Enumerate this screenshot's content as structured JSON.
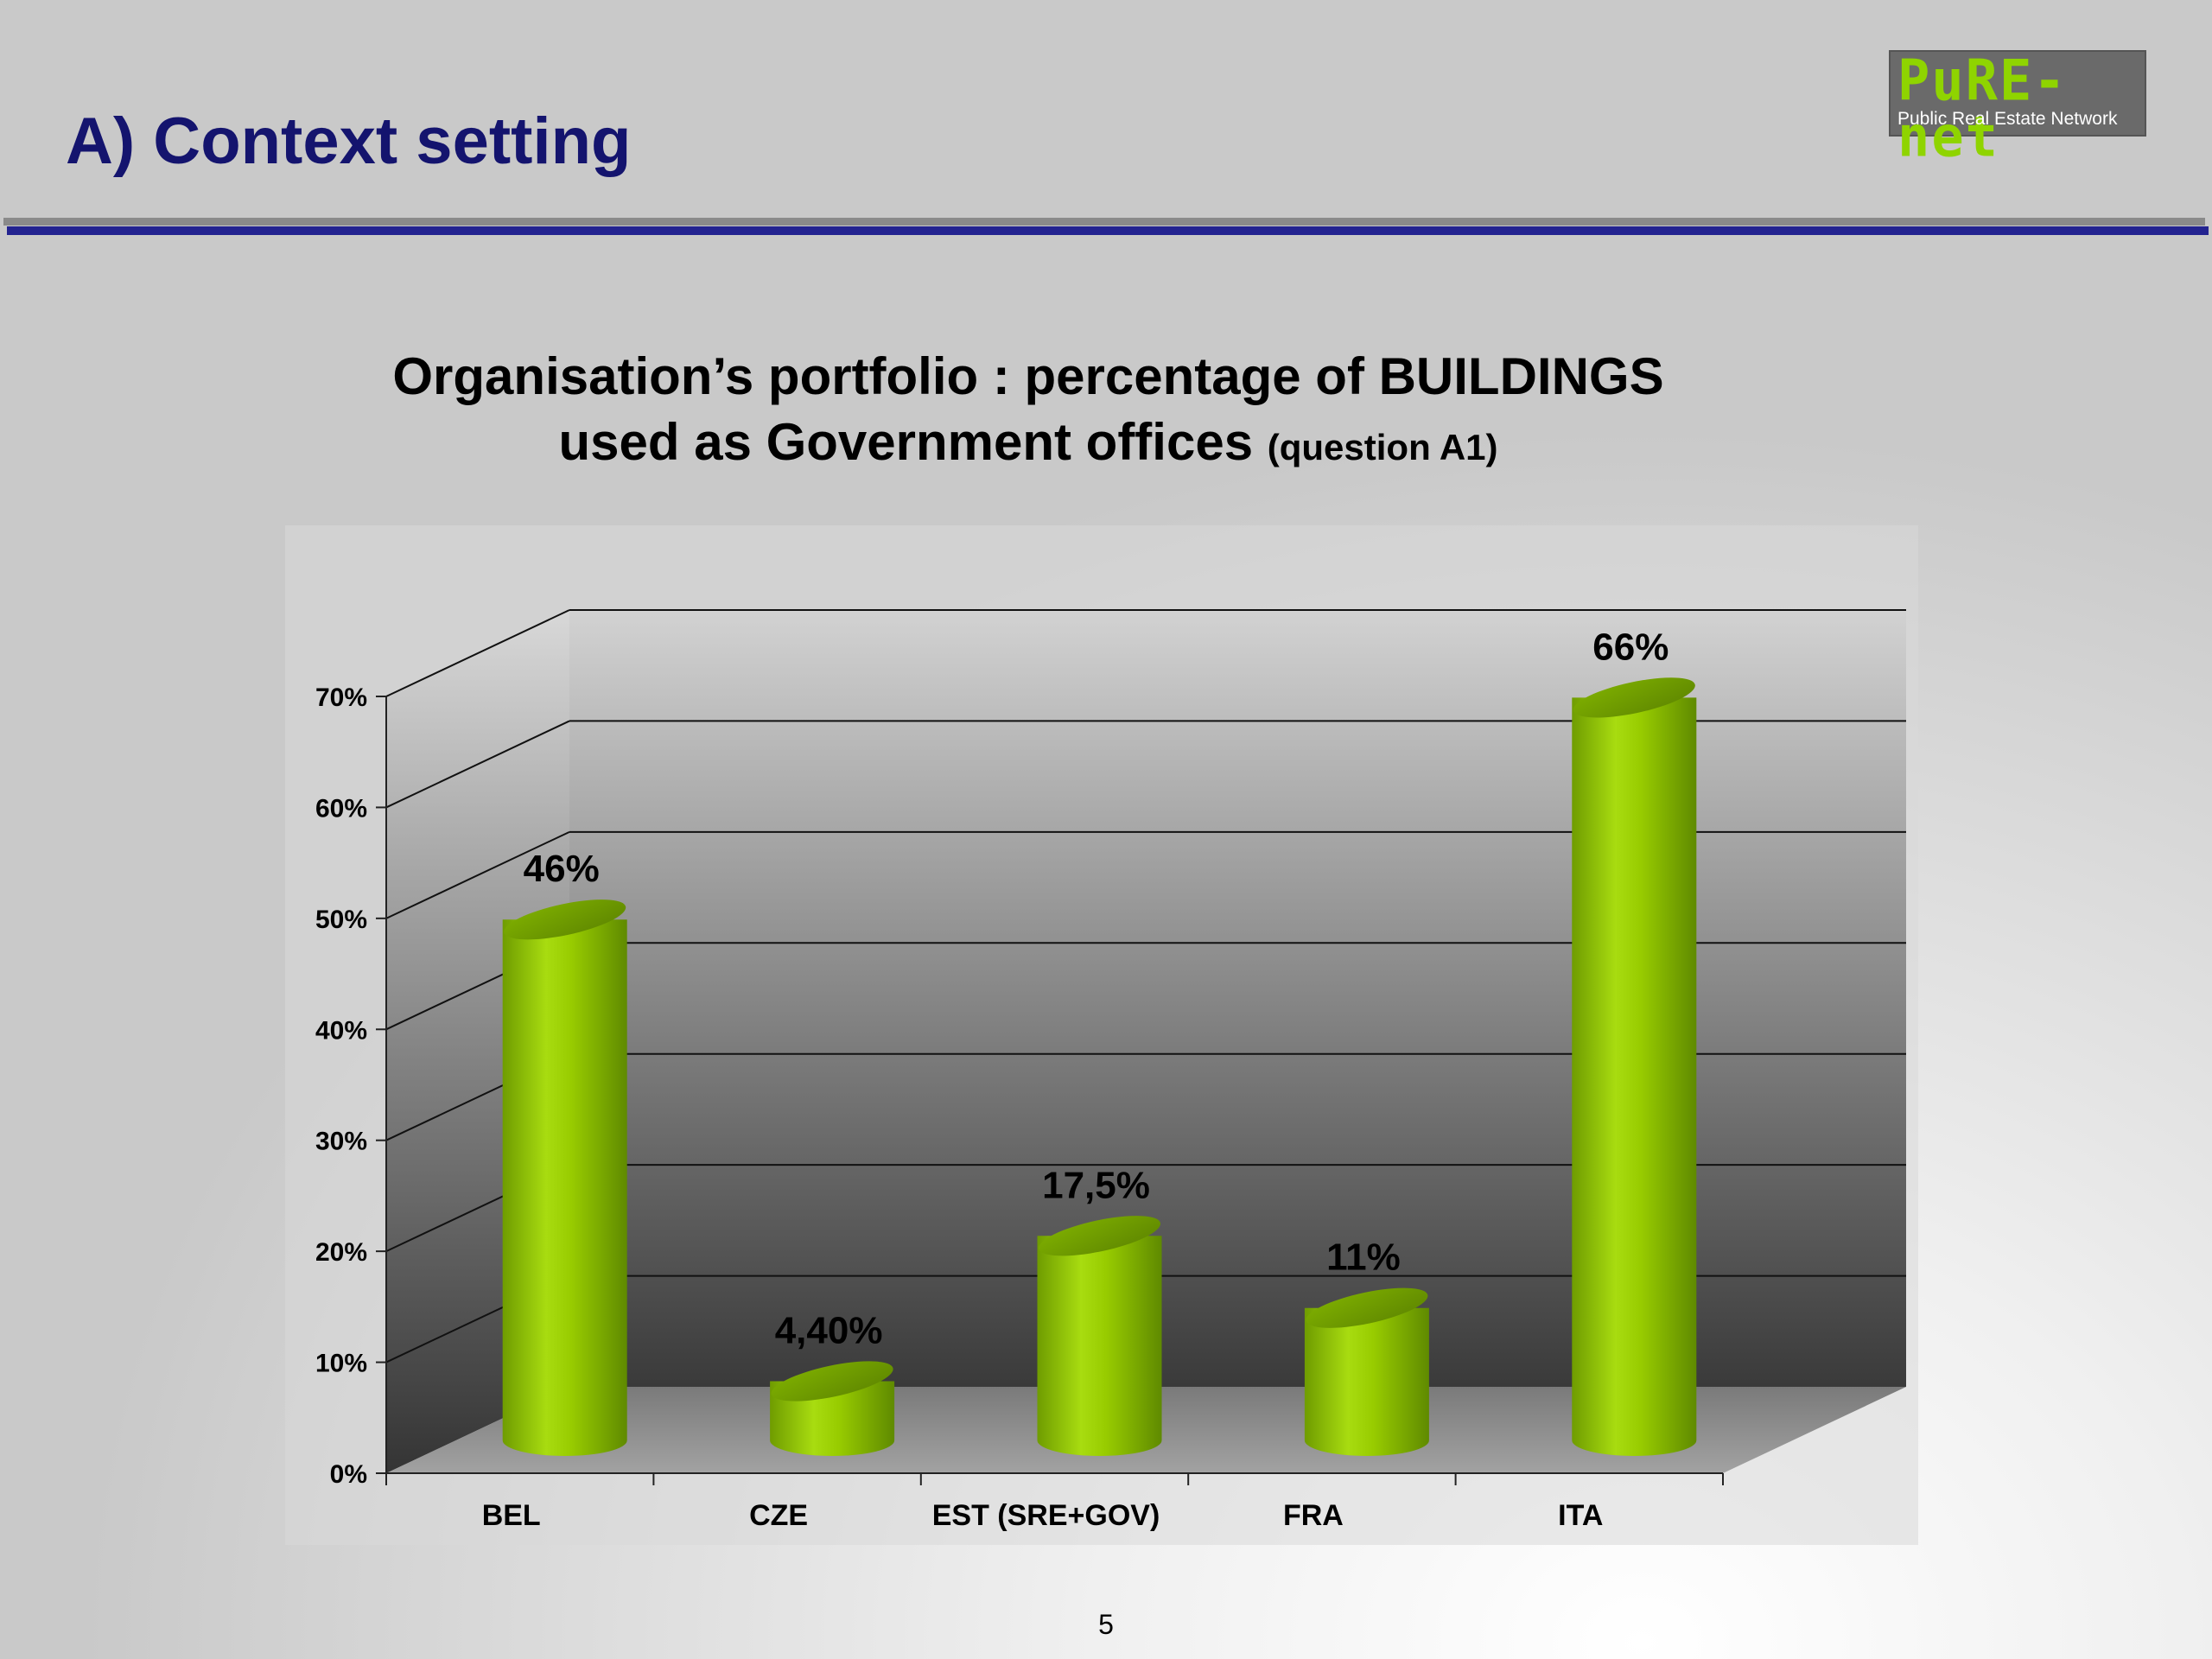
{
  "slide": {
    "title": "A) Context setting",
    "page_number": "5"
  },
  "logo": {
    "mark": "PuRE-net",
    "subtitle": "Public Real Estate Network"
  },
  "colors": {
    "title_blue": "#14146e",
    "rule_blue": "#232390",
    "bar_green": "#8fcf00",
    "logo_green": "#8fd400"
  },
  "chart_data": {
    "type": "bar",
    "style": "3d-cylinder",
    "title": "Organisation’s portfolio : percentage of BUILDINGS used as Government offices",
    "title_line1": "Organisation’s portfolio : percentage of BUILDINGS",
    "title_line2": "used as Government offices",
    "title_suffix": "(question A1)",
    "categories": [
      "BEL",
      "CZE",
      "EST (SRE+GOV)",
      "FRA",
      "ITA"
    ],
    "values": [
      46,
      4.4,
      17.5,
      11,
      66
    ],
    "data_labels": [
      "46%",
      "4,40%",
      "17,5%",
      "11%",
      "66%"
    ],
    "yticks": [
      "0%",
      "10%",
      "20%",
      "30%",
      "40%",
      "50%",
      "60%",
      "70%"
    ],
    "ylim": [
      0,
      70
    ],
    "xlabel": "",
    "ylabel": "",
    "grid": true,
    "legend": "none"
  }
}
